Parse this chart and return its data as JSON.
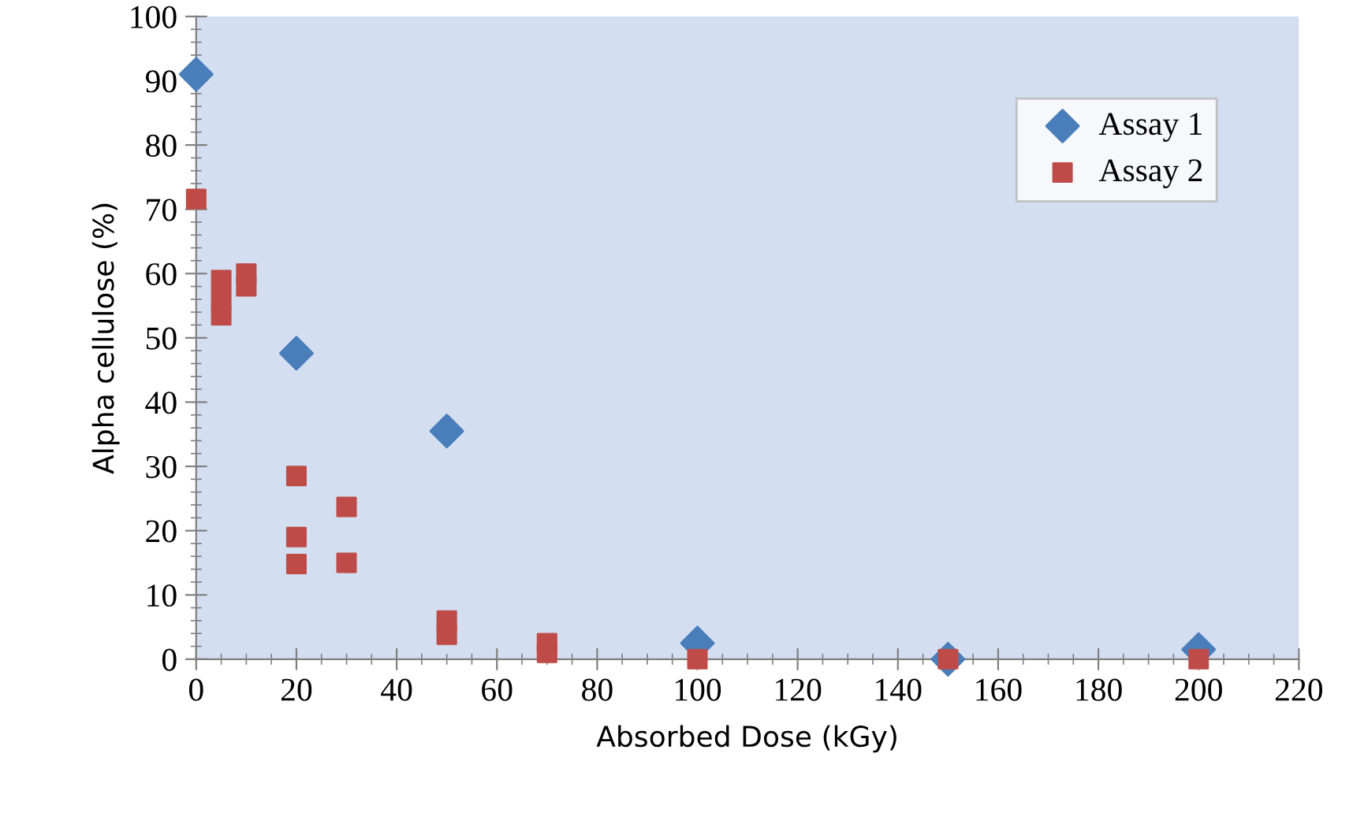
{
  "chart_data": {
    "type": "scatter",
    "xlabel": "Absorbed Dose (kGy)",
    "ylabel": "Alpha cellulose (%)",
    "xlim": [
      0,
      220
    ],
    "xticks": [
      0,
      20,
      40,
      60,
      80,
      100,
      120,
      140,
      160,
      180,
      200,
      220
    ],
    "ylim": [
      0,
      100
    ],
    "yticks": [
      0,
      10,
      20,
      30,
      40,
      50,
      60,
      70,
      80,
      90,
      100
    ],
    "grid": false,
    "legend": "top right",
    "series": [
      {
        "name": "Assay 1",
        "color": "#4a7ebb",
        "marker": "diamond",
        "x": [
          0,
          20,
          50,
          100,
          150,
          200
        ],
        "values": [
          91,
          47.6,
          35.5,
          2.5,
          0,
          1.5
        ]
      },
      {
        "name": "Assay 2",
        "color": "#be4b48",
        "marker": "square",
        "x": [
          0,
          5,
          5,
          5,
          10,
          10,
          20,
          20,
          20,
          30,
          30,
          50,
          50,
          70,
          70,
          100,
          150,
          200
        ],
        "values": [
          71.6,
          59,
          56,
          53.5,
          60,
          58,
          28.5,
          19,
          14.8,
          23.7,
          15,
          6,
          3.8,
          2.5,
          1,
          0,
          0,
          0
        ]
      }
    ]
  }
}
